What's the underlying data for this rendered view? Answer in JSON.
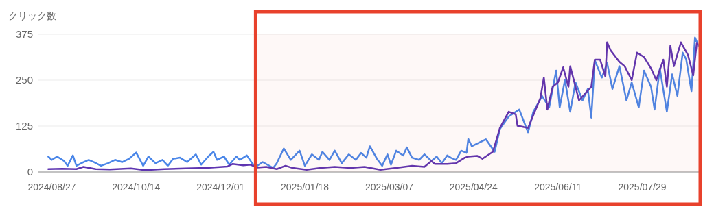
{
  "chart_data": {
    "type": "line",
    "ylabel": "クリック数",
    "xlim": [
      "2024-08-19",
      "2025-08-31"
    ],
    "ylim": [
      0,
      375
    ],
    "yticks": [
      0,
      125,
      250,
      375
    ],
    "xticks": [
      {
        "value": "2024-08-27",
        "label": "2024/08/27"
      },
      {
        "value": "2024-10-14",
        "label": "2024/10/14"
      },
      {
        "value": "2024-12-01",
        "label": "2024/12/01"
      },
      {
        "value": "2025-01-18",
        "label": "2025/01/18"
      },
      {
        "value": "2025-03-07",
        "label": "2025/03/07"
      },
      {
        "value": "2025-04-24",
        "label": "2025/04/24"
      },
      {
        "value": "2025-06-11",
        "label": "2025/06/11"
      },
      {
        "value": "2025-07-29",
        "label": "2025/07/29"
      }
    ],
    "grid": "y",
    "marker": "none",
    "line_style": "solid",
    "bands": [
      {
        "axis": "x",
        "from": "2024-12-21",
        "to": "2025-08-31",
        "color": "#e8412c"
      }
    ],
    "series": [
      {
        "color": "#4a86e8",
        "x": [
          "2024-08-25",
          "2024-08-27",
          "2024-08-30",
          "2024-09-03",
          "2024-09-05",
          "2024-09-08",
          "2024-09-10",
          "2024-09-14",
          "2024-09-17",
          "2024-09-20",
          "2024-09-24",
          "2024-09-28",
          "2024-10-02",
          "2024-10-06",
          "2024-10-10",
          "2024-10-14",
          "2024-10-18",
          "2024-10-21",
          "2024-10-25",
          "2024-10-29",
          "2024-11-01",
          "2024-11-04",
          "2024-11-08",
          "2024-11-12",
          "2024-11-17",
          "2024-11-20",
          "2024-11-24",
          "2024-11-27",
          "2024-11-29",
          "2024-12-03",
          "2024-12-06",
          "2024-12-10",
          "2024-12-12",
          "2024-12-16",
          "2024-12-19",
          "2024-12-21",
          "2024-12-25",
          "2024-12-31",
          "2025-01-02",
          "2025-01-06",
          "2025-01-10",
          "2025-01-15",
          "2025-01-18",
          "2025-01-22",
          "2025-01-26",
          "2025-01-28",
          "2025-02-01",
          "2025-02-04",
          "2025-02-08",
          "2025-02-12",
          "2025-02-16",
          "2025-02-19",
          "2025-02-22",
          "2025-02-24",
          "2025-02-28",
          "2025-03-03",
          "2025-03-06",
          "2025-03-08",
          "2025-03-11",
          "2025-03-15",
          "2025-03-17",
          "2025-03-20",
          "2025-03-24",
          "2025-03-27",
          "2025-03-31",
          "2025-04-03",
          "2025-04-06",
          "2025-04-09",
          "2025-04-11",
          "2025-04-14",
          "2025-04-17",
          "2025-04-20",
          "2025-04-21",
          "2025-04-23",
          "2025-05-01",
          "2025-05-06",
          "2025-05-09",
          "2025-05-14",
          "2025-05-20",
          "2025-05-25",
          "2025-05-28",
          "2025-06-02",
          "2025-06-06",
          "2025-06-10",
          "2025-06-12",
          "2025-06-15",
          "2025-06-18",
          "2025-06-21",
          "2025-06-25",
          "2025-06-28",
          "2025-06-30",
          "2025-07-02",
          "2025-07-06",
          "2025-07-09",
          "2025-07-12",
          "2025-07-16",
          "2025-07-20",
          "2025-07-23",
          "2025-07-27",
          "2025-07-30",
          "2025-08-03",
          "2025-08-05",
          "2025-08-08",
          "2025-08-12",
          "2025-08-15",
          "2025-08-18",
          "2025-08-21",
          "2025-08-23",
          "2025-08-26",
          "2025-08-28",
          "2025-08-30"
        ],
        "values": [
          42,
          33,
          42,
          30,
          17,
          45,
          17,
          27,
          33,
          27,
          17,
          24,
          33,
          27,
          36,
          53,
          17,
          42,
          24,
          33,
          17,
          36,
          39,
          27,
          48,
          20,
          42,
          55,
          33,
          42,
          20,
          42,
          33,
          45,
          24,
          14,
          27,
          11,
          24,
          64,
          33,
          58,
          17,
          48,
          33,
          55,
          33,
          58,
          24,
          48,
          33,
          52,
          39,
          70,
          36,
          17,
          48,
          20,
          58,
          45,
          67,
          39,
          33,
          48,
          30,
          42,
          24,
          45,
          39,
          33,
          58,
          52,
          90,
          70,
          89,
          55,
          117,
          151,
          170,
          108,
          164,
          207,
          176,
          276,
          176,
          251,
          164,
          244,
          195,
          226,
          148,
          304,
          257,
          297,
          226,
          288,
          195,
          244,
          176,
          276,
          232,
          170,
          282,
          164,
          266,
          207,
          325,
          307,
          220,
          366,
          344
        ]
      },
      {
        "color": "#5e35b1",
        "x": [
          "2024-08-25",
          "2024-09-02",
          "2024-09-10",
          "2024-09-14",
          "2024-09-21",
          "2024-09-29",
          "2024-10-11",
          "2024-10-19",
          "2024-10-30",
          "2024-11-11",
          "2024-11-23",
          "2024-11-29",
          "2024-12-05",
          "2024-12-08",
          "2024-12-14",
          "2024-12-18",
          "2024-12-22",
          "2024-12-27",
          "2025-01-02",
          "2025-01-07",
          "2025-01-11",
          "2025-01-19",
          "2025-01-27",
          "2025-02-04",
          "2025-02-13",
          "2025-02-21",
          "2025-03-02",
          "2025-03-11",
          "2025-03-20",
          "2025-03-27",
          "2025-03-31",
          "2025-04-02",
          "2025-04-09",
          "2025-04-14",
          "2025-04-19",
          "2025-04-21",
          "2025-04-26",
          "2025-04-29",
          "2025-05-05",
          "2025-05-09",
          "2025-05-14",
          "2025-05-18",
          "2025-05-19",
          "2025-05-25",
          "2025-06-01",
          "2025-06-03",
          "2025-06-05",
          "2025-06-08",
          "2025-06-11",
          "2025-06-14",
          "2025-06-17",
          "2025-06-18",
          "2025-06-23",
          "2025-06-30",
          "2025-07-02",
          "2025-07-05",
          "2025-07-08",
          "2025-07-09",
          "2025-07-11",
          "2025-07-16",
          "2025-07-19",
          "2025-07-23",
          "2025-07-26",
          "2025-07-30",
          "2025-08-03",
          "2025-08-06",
          "2025-08-10",
          "2025-08-12",
          "2025-08-14",
          "2025-08-16",
          "2025-08-20",
          "2025-08-24",
          "2025-08-27",
          "2025-08-29"
        ],
        "values": [
          8,
          9,
          8,
          14,
          8,
          7,
          10,
          5,
          8,
          10,
          11,
          13,
          15,
          22,
          18,
          20,
          12,
          14,
          8,
          17,
          11,
          6,
          11,
          14,
          11,
          14,
          6,
          11,
          17,
          14,
          30,
          22,
          22,
          24,
          39,
          42,
          44,
          36,
          55,
          120,
          164,
          157,
          126,
          120,
          201,
          257,
          170,
          232,
          244,
          285,
          232,
          288,
          195,
          232,
          306,
          306,
          260,
          353,
          331,
          300,
          288,
          250,
          325,
          313,
          282,
          250,
          306,
          232,
          344,
          288,
          353,
          319,
          263,
          350
        ]
      }
    ]
  }
}
